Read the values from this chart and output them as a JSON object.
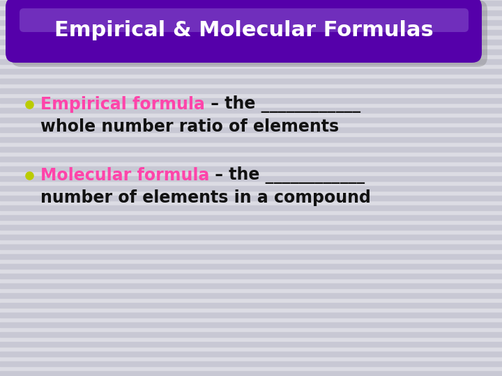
{
  "title": "Empirical & Molecular Formulas",
  "title_color": "#ffffff",
  "title_fontsize": 22,
  "bg_light": "#DCDCE4",
  "bg_dark": "#C8C8D4",
  "pill_color": "#5500AA",
  "pill_highlight": "#8855CC",
  "pill_edge": "#7722BB",
  "shadow_color": "#777777",
  "bullet_color": "#BBCC00",
  "label1": "Empirical formula",
  "text1a": " – the ____________",
  "text1b": "whole number ratio of elements",
  "label2": "Molecular formula",
  "text2a": " – the ____________",
  "text2b": "number of elements in a compound",
  "label_color": "#FF44AA",
  "text_color": "#111111",
  "text_fontsize": 17,
  "label_fontsize": 17
}
